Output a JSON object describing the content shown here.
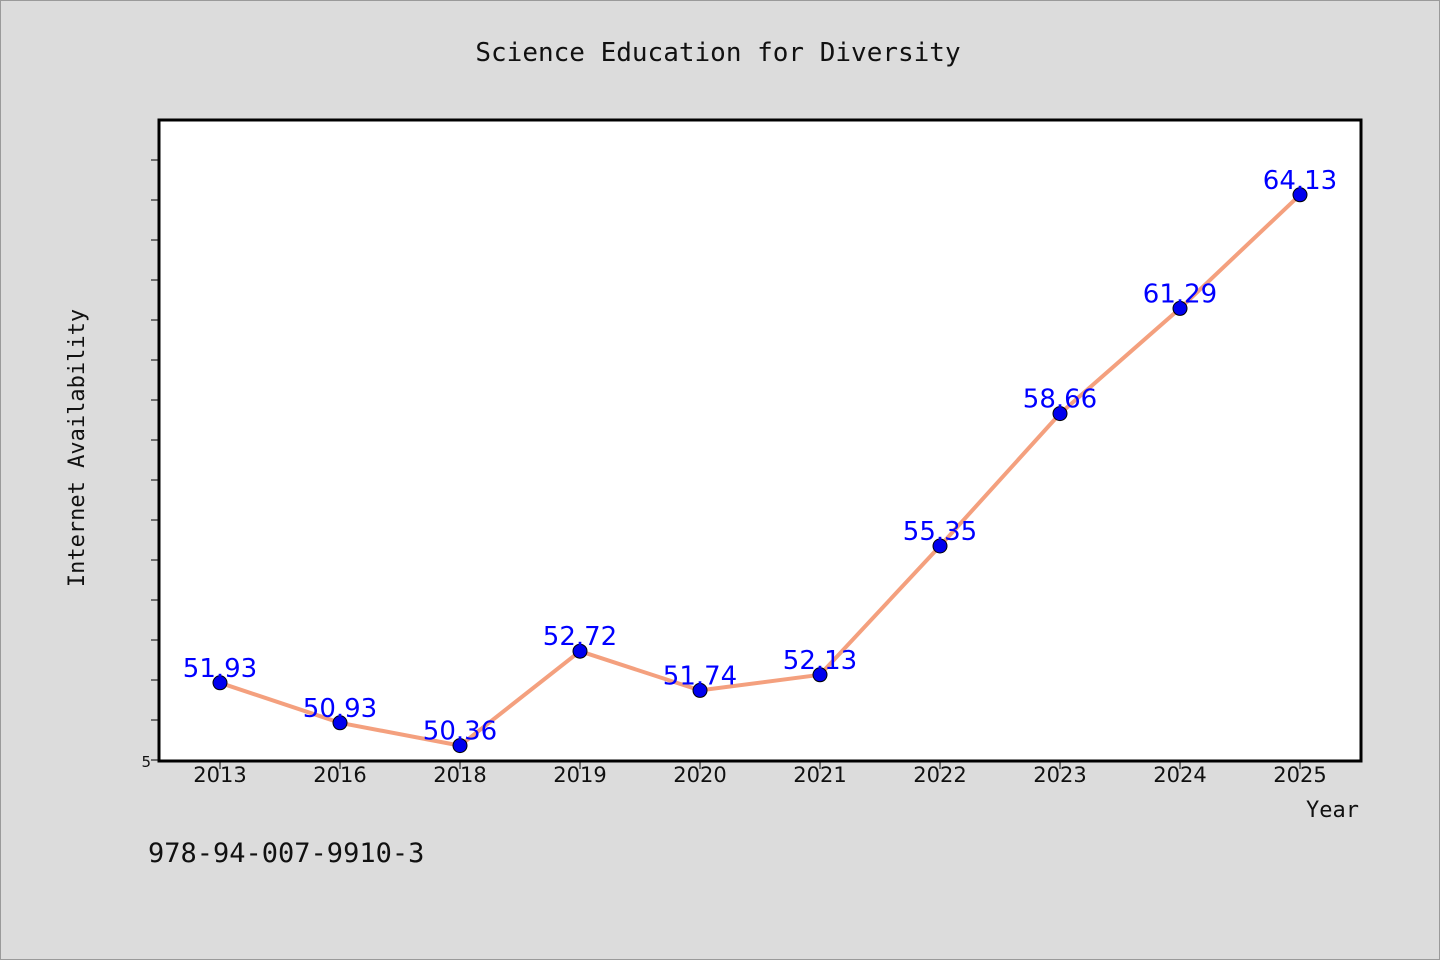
{
  "chart_data": {
    "type": "line",
    "title": "Science Education for Diversity",
    "xlabel": "Year",
    "ylabel": "Internet Availability",
    "categories": [
      "2013",
      "2016",
      "2018",
      "2019",
      "2020",
      "2021",
      "2022",
      "2023",
      "2024",
      "2025"
    ],
    "series": [
      {
        "values": [
          51.93,
          50.93,
          50.36,
          52.72,
          51.74,
          52.13,
          55.35,
          58.66,
          61.29,
          64.13
        ],
        "labels": [
          "51.93",
          "50.93",
          "50.36",
          "52.72",
          "51.74",
          "52.13",
          "55.35",
          "58.66",
          "61.29",
          "64.13"
        ],
        "line_color": "#f4a07e",
        "marker_color": "#0000ee"
      }
    ],
    "ylim": [
      50,
      66
    ],
    "y_tick_label": "5",
    "grid": false,
    "legend": "none"
  },
  "footer": {
    "isbn": "978-94-007-9910-3"
  }
}
